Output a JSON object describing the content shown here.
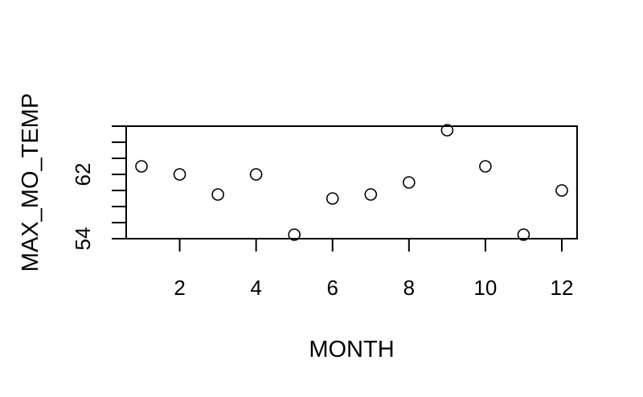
{
  "chart_data": {
    "type": "scatter",
    "xlabel": "MONTH",
    "ylabel": "MAX_MO_TEMP",
    "x": [
      1,
      2,
      3,
      4,
      5,
      6,
      7,
      8,
      9,
      10,
      11,
      12
    ],
    "y": [
      63,
      62,
      59.5,
      62,
      54.5,
      59,
      59.5,
      61,
      67.5,
      63,
      54.5,
      60
    ],
    "xlim": [
      0.6,
      12.4
    ],
    "ylim": [
      54,
      68
    ],
    "x_ticks": [
      2,
      4,
      6,
      8,
      10,
      12
    ],
    "y_ticks": [
      54,
      56,
      58,
      60,
      62,
      64,
      66,
      68
    ],
    "y_tick_labels": [
      "54",
      "62"
    ],
    "point_style": "open-circle",
    "grid": false,
    "colors": {
      "points": "#000000",
      "axes": "#000000",
      "background": "#ffffff"
    }
  }
}
